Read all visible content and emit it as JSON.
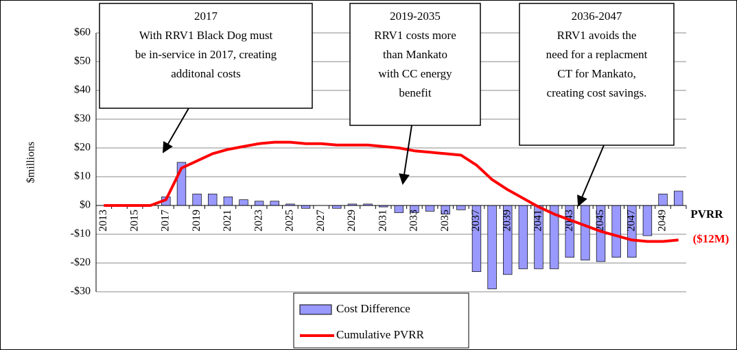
{
  "chart_data": {
    "type": "bar",
    "y_label": "$millions",
    "categories": [
      "2013",
      null,
      "2015",
      null,
      "2017",
      null,
      "2019",
      null,
      "2021",
      null,
      "2023",
      null,
      "2025",
      null,
      "2027",
      null,
      "2029",
      null,
      "2031",
      null,
      "2033",
      null,
      "2035",
      null,
      "2037",
      null,
      "2039",
      null,
      "2041",
      null,
      "2043",
      null,
      "2045",
      null,
      "2047",
      null,
      "2049",
      null
    ],
    "series": [
      {
        "name": "Cost Difference",
        "type": "bar",
        "color": "#9999ff",
        "values": [
          0,
          0,
          0,
          0,
          3,
          15,
          4,
          4,
          3,
          2,
          1.5,
          1.5,
          0.5,
          -1,
          0,
          -1,
          0.5,
          0.5,
          -0.5,
          -2.5,
          -2.5,
          -2,
          -3,
          -1.5,
          -23,
          -29,
          -24,
          -22,
          -22,
          -22,
          -18,
          -19,
          -19.5,
          -18,
          -18,
          -10.5,
          4,
          5
        ]
      },
      {
        "name": "Cumulative PVRR",
        "type": "line",
        "color": "#ff0000",
        "values": [
          0,
          0,
          0,
          0,
          2,
          13,
          15.5,
          18,
          19.5,
          20.5,
          21.5,
          22,
          22,
          21.5,
          21.5,
          21,
          21,
          21,
          20.5,
          20,
          19,
          18.5,
          18,
          17.5,
          14,
          9,
          5.5,
          2.5,
          -0.5,
          -3,
          -5,
          -7,
          -9,
          -10.5,
          -12,
          -12.5,
          -12.5,
          -12
        ]
      }
    ],
    "ylim": [
      -30,
      60
    ],
    "yticks": [
      {
        "value": -30,
        "label": "-$30"
      },
      {
        "value": -20,
        "label": "-$20"
      },
      {
        "value": -10,
        "label": "-$10"
      },
      {
        "value": 0,
        "label": "$0"
      },
      {
        "value": 10,
        "label": "$10"
      },
      {
        "value": 20,
        "label": "$20"
      },
      {
        "value": 30,
        "label": "$30"
      },
      {
        "value": 40,
        "label": "$40"
      },
      {
        "value": 50,
        "label": "$50"
      },
      {
        "value": 60,
        "label": "$60"
      }
    ],
    "grid": true,
    "annotations": [
      {
        "lines": [
          "2017",
          "With RRV1 Black Dog must",
          "be in-service in 2017, creating",
          "additonal costs"
        ]
      },
      {
        "lines": [
          "2019-2035",
          "RRV1 costs more",
          "than Mankato",
          "with CC energy",
          "benefit"
        ]
      },
      {
        "lines": [
          "2036-2047",
          "RRV1 avoids the",
          "need for a replacment",
          "CT for Mankato,",
          "creating cost savings."
        ]
      }
    ],
    "end_label": "PVRR",
    "end_value_label": "($12M)"
  }
}
